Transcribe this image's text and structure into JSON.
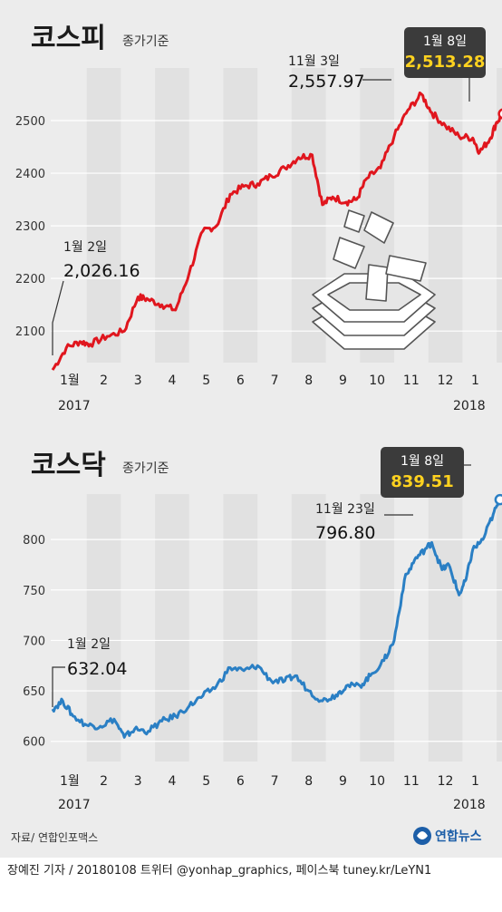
{
  "source": "자료/ 연합인포맥스",
  "credit": "장예진 기자 / 20180108 트위터 @yonhap_graphics, 페이스북 tuney.kr/LeYN1",
  "logo_text": "연합뉴스",
  "colors": {
    "kospi": "#e0161e",
    "kosdaq": "#2a7fc4",
    "callout_bg": "#3b3b3b",
    "callout_value": "#ffd21f"
  },
  "chart_data": [
    {
      "type": "line",
      "title": "코스피",
      "subtitle": "종가기준",
      "months": [
        "1월",
        "2",
        "3",
        "4",
        "5",
        "6",
        "7",
        "8",
        "9",
        "10",
        "11",
        "12",
        "1"
      ],
      "year_start": "2017",
      "year_end": "2018",
      "ylim": [
        2040,
        2600
      ],
      "yticks": [
        2100,
        2200,
        2300,
        2400,
        2500
      ],
      "series": [
        {
          "points": [
            [
              0,
              2026
            ],
            [
              0.4,
              2068
            ],
            [
              0.8,
              2080
            ],
            [
              1.1,
              2075
            ],
            [
              1.6,
              2090
            ],
            [
              2.1,
              2100
            ],
            [
              2.5,
              2165
            ],
            [
              2.8,
              2160
            ],
            [
              3.2,
              2150
            ],
            [
              3.6,
              2140
            ],
            [
              4.0,
              2210
            ],
            [
              4.4,
              2290
            ],
            [
              4.8,
              2300
            ],
            [
              5.2,
              2360
            ],
            [
              5.6,
              2375
            ],
            [
              6.0,
              2380
            ],
            [
              6.4,
              2395
            ],
            [
              6.8,
              2410
            ],
            [
              7.2,
              2430
            ],
            [
              7.6,
              2435
            ],
            [
              7.9,
              2340
            ],
            [
              8.2,
              2355
            ],
            [
              8.6,
              2345
            ],
            [
              8.9,
              2350
            ],
            [
              9.2,
              2390
            ],
            [
              9.6,
              2410
            ],
            [
              10.0,
              2470
            ],
            [
              10.4,
              2520
            ],
            [
              10.8,
              2550
            ],
            [
              11.1,
              2515
            ],
            [
              11.5,
              2490
            ],
            [
              11.9,
              2470
            ],
            [
              12.3,
              2467
            ],
            [
              12.5,
              2440
            ],
            [
              12.8,
              2465
            ],
            [
              13.0,
              2497
            ],
            [
              13.2,
              2513
            ]
          ]
        }
      ],
      "annotations": [
        {
          "label": "1월 2일",
          "value": "2,026.16"
        },
        {
          "label": "11월 3일",
          "value": "2,557.97"
        },
        {
          "label": "1월 8일",
          "value": "2,513.28"
        }
      ]
    },
    {
      "type": "line",
      "title": "코스닥",
      "subtitle": "종가기준",
      "months": [
        "1월",
        "2",
        "3",
        "4",
        "5",
        "6",
        "7",
        "8",
        "9",
        "10",
        "11",
        "12",
        "1"
      ],
      "year_start": "2017",
      "year_end": "2018",
      "ylim": [
        580,
        845
      ],
      "yticks": [
        600,
        650,
        700,
        750,
        800
      ],
      "series": [
        {
          "points": [
            [
              0,
              632
            ],
            [
              0.3,
              640
            ],
            [
              0.6,
              625
            ],
            [
              1.0,
              616
            ],
            [
              1.4,
              615
            ],
            [
              1.8,
              622
            ],
            [
              2.1,
              604
            ],
            [
              2.4,
              612
            ],
            [
              2.8,
              610
            ],
            [
              3.2,
              620
            ],
            [
              3.6,
              625
            ],
            [
              4.0,
              635
            ],
            [
              4.4,
              645
            ],
            [
              4.8,
              655
            ],
            [
              5.2,
              673
            ],
            [
              5.6,
              670
            ],
            [
              6.0,
              675
            ],
            [
              6.4,
              660
            ],
            [
              6.8,
              660
            ],
            [
              7.1,
              665
            ],
            [
              7.5,
              650
            ],
            [
              7.9,
              640
            ],
            [
              8.3,
              646
            ],
            [
              8.6,
              655
            ],
            [
              9.0,
              655
            ],
            [
              9.3,
              665
            ],
            [
              9.7,
              680
            ],
            [
              10.0,
              700
            ],
            [
              10.3,
              760
            ],
            [
              10.6,
              780
            ],
            [
              10.9,
              790
            ],
            [
              11.1,
              797
            ],
            [
              11.4,
              770
            ],
            [
              11.6,
              775
            ],
            [
              11.9,
              745
            ],
            [
              12.1,
              760
            ],
            [
              12.3,
              790
            ],
            [
              12.6,
              800
            ],
            [
              12.9,
              825
            ],
            [
              13.1,
              839.5
            ]
          ]
        }
      ],
      "annotations": [
        {
          "label": "1월 2일",
          "value": "632.04"
        },
        {
          "label": "11월 23일",
          "value": "796.80"
        },
        {
          "label": "1월 8일",
          "value": "839.51"
        }
      ]
    }
  ]
}
